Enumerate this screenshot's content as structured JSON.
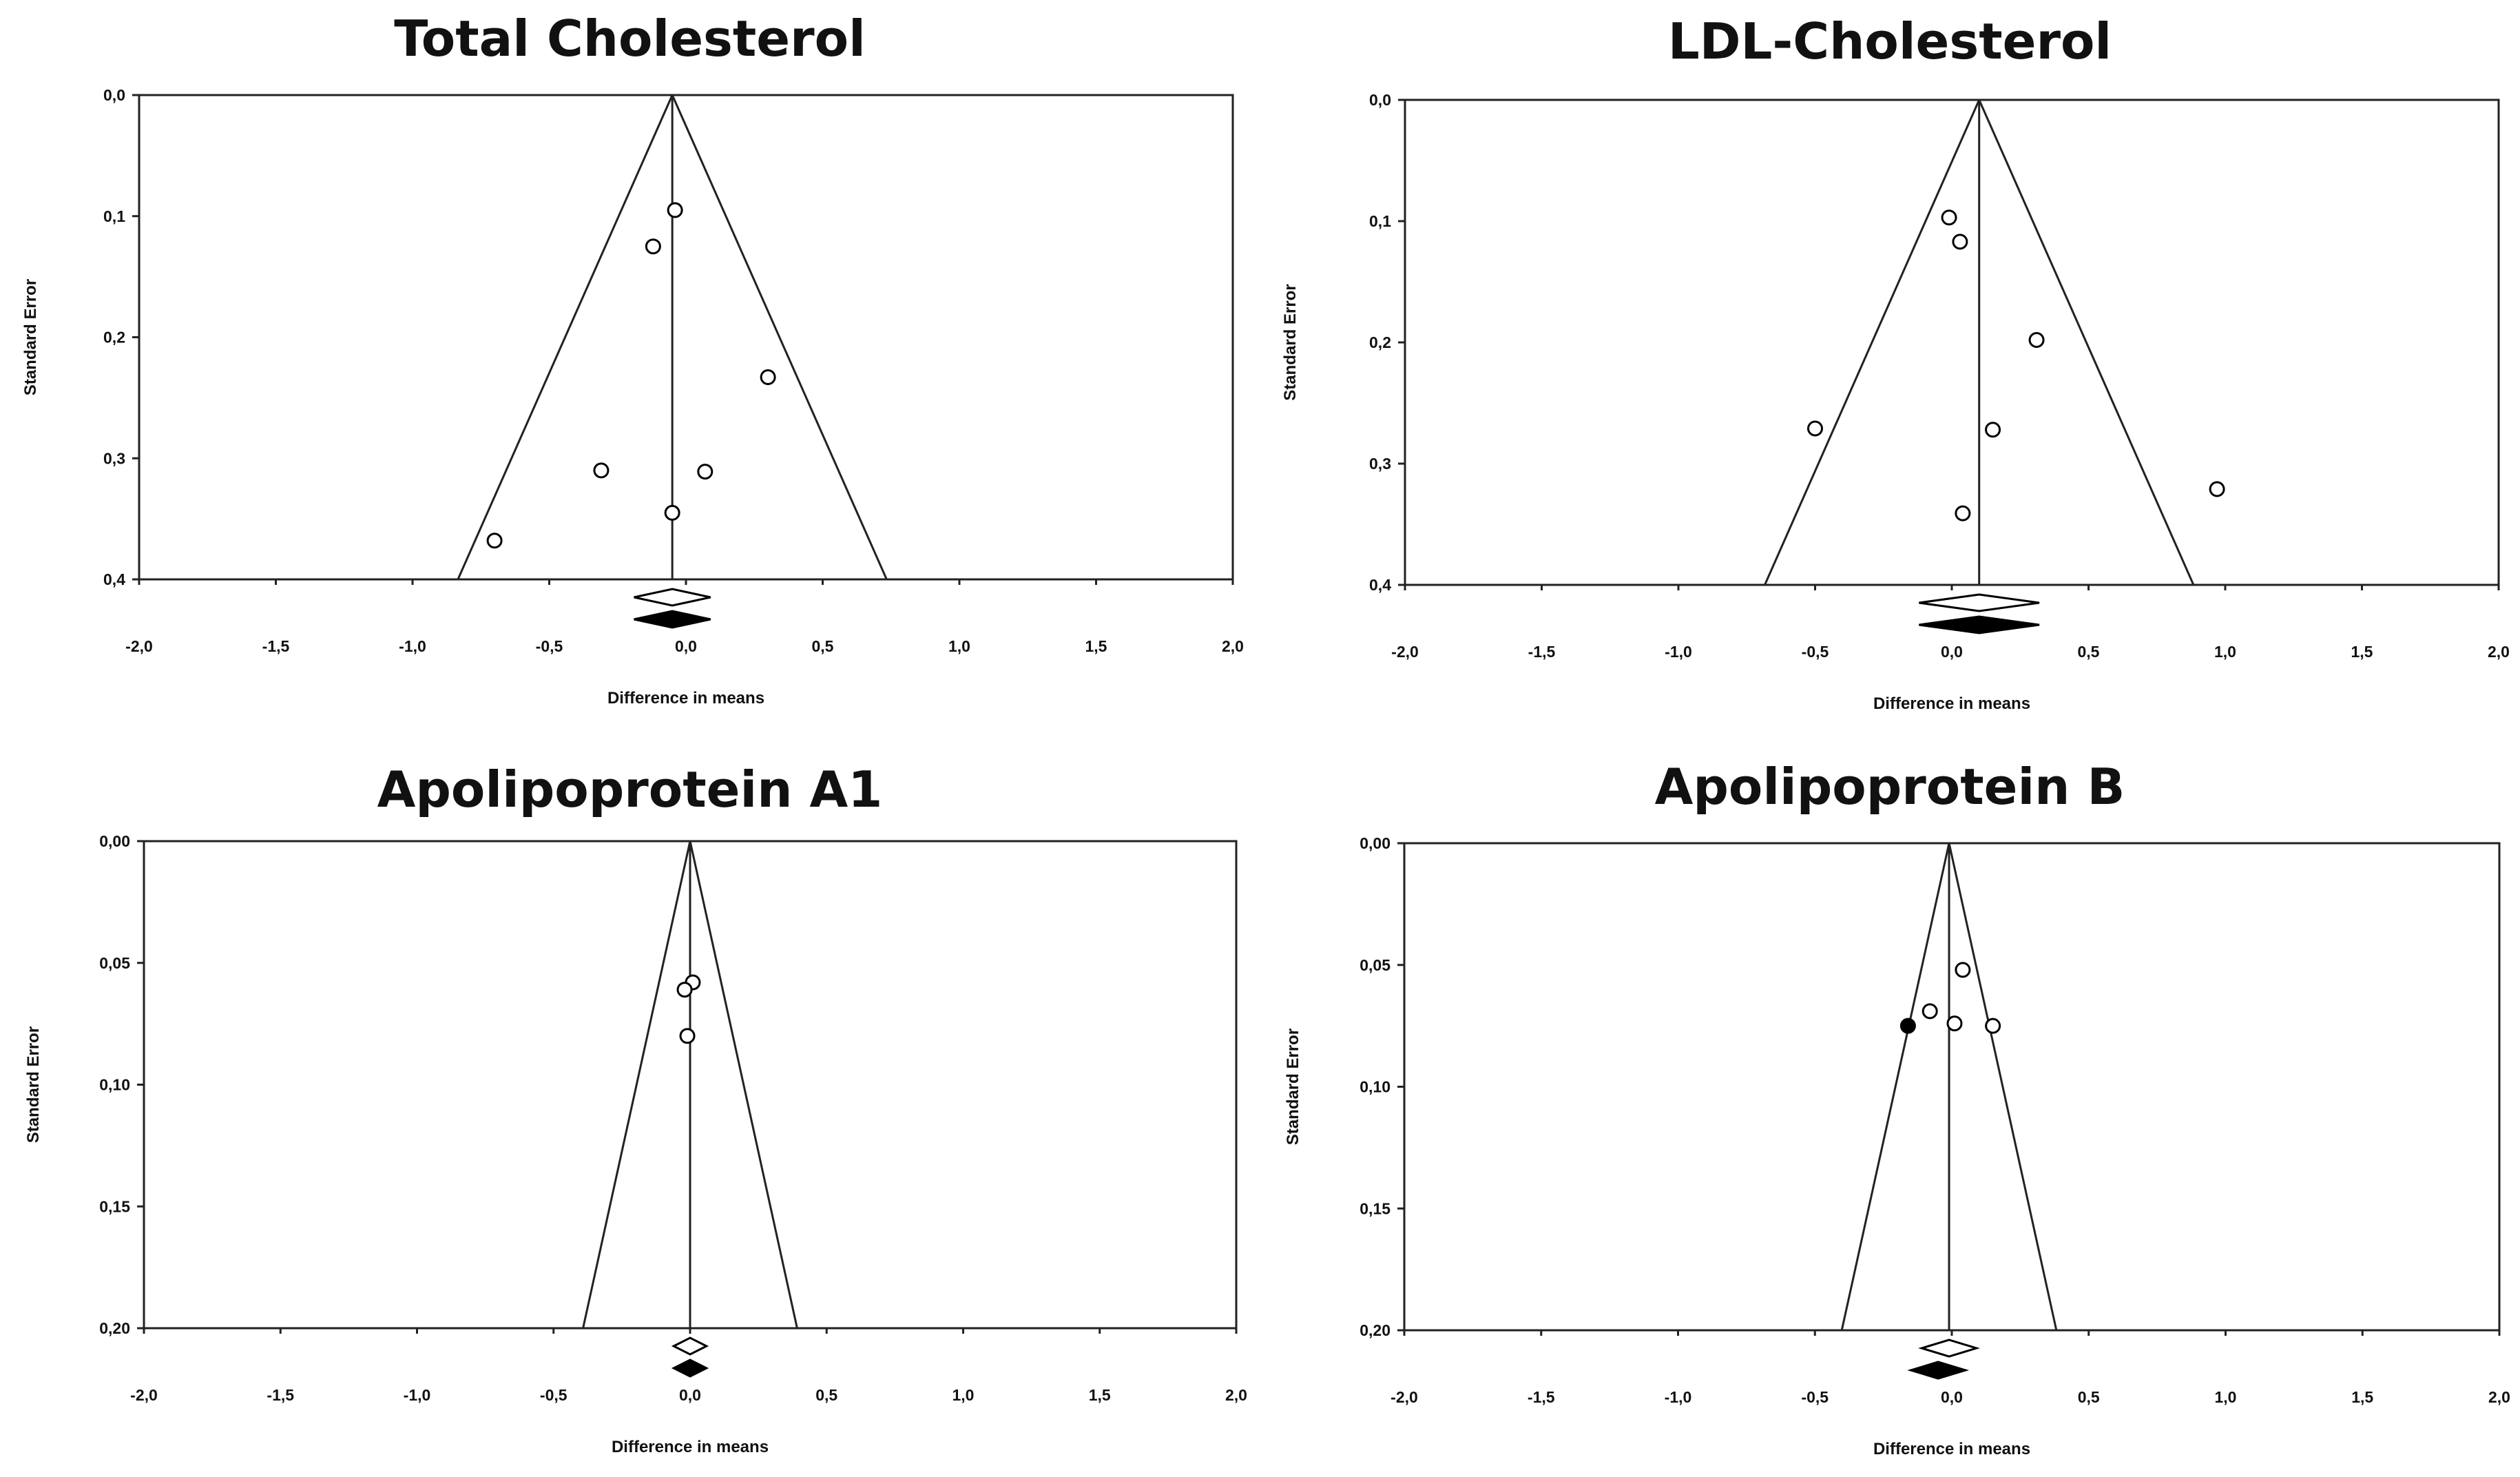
{
  "chart_data": [
    {
      "type": "scatter",
      "title": "Total Cholesterol",
      "xlabel": "Difference in means",
      "ylabel": "Standard Error",
      "xlim": [
        -2.0,
        2.0
      ],
      "ylim": [
        0.0,
        0.4
      ],
      "xticks": [
        "-2,0",
        "-1,5",
        "-1,0",
        "-0,5",
        "0,0",
        "0,5",
        "1,0",
        "1,5",
        "2,0"
      ],
      "yticks": [
        "0,0",
        "0,1",
        "0,2",
        "0,3",
        "0,4"
      ],
      "funnel_center": -0.05,
      "points": [
        {
          "x": -0.04,
          "y": 0.095,
          "filled": false
        },
        {
          "x": -0.12,
          "y": 0.125,
          "filled": false
        },
        {
          "x": 0.3,
          "y": 0.233,
          "filled": false
        },
        {
          "x": -0.31,
          "y": 0.31,
          "filled": false
        },
        {
          "x": 0.07,
          "y": 0.311,
          "filled": false
        },
        {
          "x": -0.05,
          "y": 0.345,
          "filled": false
        },
        {
          "x": -0.7,
          "y": 0.368,
          "filled": false
        }
      ],
      "diamonds": [
        {
          "center": -0.05,
          "half_width": 0.14,
          "filled": false
        },
        {
          "center": -0.05,
          "half_width": 0.14,
          "filled": true
        }
      ]
    },
    {
      "type": "scatter",
      "title": "LDL-Cholesterol",
      "xlabel": "Difference in means",
      "ylabel": "Standard Error",
      "xlim": [
        -2.0,
        2.0
      ],
      "ylim": [
        0.0,
        0.4
      ],
      "xticks": [
        "-2,0",
        "-1,5",
        "-1,0",
        "-0,5",
        "0,0",
        "0,5",
        "1,0",
        "1,5",
        "2,0"
      ],
      "yticks": [
        "0,0",
        "0,1",
        "0,2",
        "0,3",
        "0,4"
      ],
      "funnel_center": 0.1,
      "points": [
        {
          "x": -0.01,
          "y": 0.097,
          "filled": false
        },
        {
          "x": 0.03,
          "y": 0.117,
          "filled": false
        },
        {
          "x": 0.31,
          "y": 0.198,
          "filled": false
        },
        {
          "x": -0.5,
          "y": 0.271,
          "filled": false
        },
        {
          "x": 0.15,
          "y": 0.272,
          "filled": false
        },
        {
          "x": 0.97,
          "y": 0.321,
          "filled": false
        },
        {
          "x": 0.04,
          "y": 0.341,
          "filled": false
        }
      ],
      "diamonds": [
        {
          "center": 0.1,
          "half_width": 0.22,
          "filled": false
        },
        {
          "center": 0.1,
          "half_width": 0.22,
          "filled": true
        }
      ]
    },
    {
      "type": "scatter",
      "title": "Apolipoprotein A1",
      "xlabel": "Difference in means",
      "ylabel": "Standard Error",
      "xlim": [
        -2.0,
        2.0
      ],
      "ylim": [
        0.0,
        0.2
      ],
      "xticks": [
        "-2,0",
        "-1,5",
        "-1,0",
        "-0,5",
        "0,0",
        "0,5",
        "1,0",
        "1,5",
        "2,0"
      ],
      "yticks": [
        "0,00",
        "0,05",
        "0,10",
        "0,15",
        "0,20"
      ],
      "funnel_center": 0.0,
      "points": [
        {
          "x": 0.01,
          "y": 0.058,
          "filled": false
        },
        {
          "x": -0.02,
          "y": 0.061,
          "filled": false
        },
        {
          "x": -0.01,
          "y": 0.08,
          "filled": false
        }
      ],
      "diamonds": [
        {
          "center": 0.0,
          "half_width": 0.06,
          "filled": false
        },
        {
          "center": 0.0,
          "half_width": 0.06,
          "filled": true
        }
      ]
    },
    {
      "type": "scatter",
      "title": "Apolipoprotein B",
      "xlabel": "Difference in means",
      "ylabel": "Standard Error",
      "xlim": [
        -2.0,
        2.0
      ],
      "ylim": [
        0.0,
        0.2
      ],
      "xticks": [
        "-2,0",
        "-1,5",
        "-1,0",
        "-0,5",
        "0,0",
        "0,5",
        "1,0",
        "1,5",
        "2,0"
      ],
      "yticks": [
        "0,00",
        "0,05",
        "0,10",
        "0,15",
        "0,20"
      ],
      "funnel_center": -0.01,
      "points": [
        {
          "x": 0.04,
          "y": 0.052,
          "filled": false
        },
        {
          "x": -0.08,
          "y": 0.069,
          "filled": false
        },
        {
          "x": 0.01,
          "y": 0.074,
          "filled": false
        },
        {
          "x": 0.15,
          "y": 0.075,
          "filled": false
        },
        {
          "x": -0.16,
          "y": 0.075,
          "filled": true
        }
      ],
      "diamonds": [
        {
          "center": -0.01,
          "half_width": 0.1,
          "filled": false
        },
        {
          "center": -0.05,
          "half_width": 0.1,
          "filled": true
        }
      ]
    }
  ]
}
